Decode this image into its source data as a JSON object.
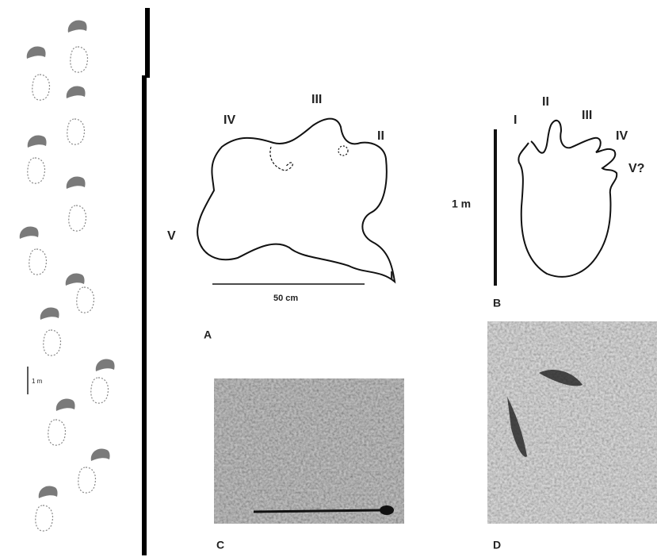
{
  "trackway": {
    "scale_label": "1 m"
  },
  "panel_a": {
    "digits": [
      "IV",
      "III",
      "II",
      "V",
      "I"
    ],
    "scale_label": "50 cm",
    "label": "A"
  },
  "panel_b": {
    "digits": [
      "I",
      "II",
      "III",
      "IV",
      "V?"
    ],
    "scale_label": "1 m",
    "label": "B"
  },
  "panel_c": {
    "label": "C"
  },
  "panel_d": {
    "label": "D"
  }
}
